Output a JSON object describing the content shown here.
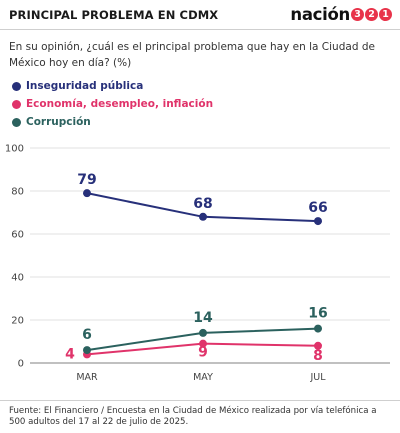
{
  "header": {
    "title": "PRINCIPAL PROBLEMA EN CDMX",
    "logo_word": "nación",
    "logo_digits": [
      "3",
      "2",
      "1"
    ]
  },
  "question": "En su opinión, ¿cuál es el principal problema que hay en la Ciudad de México hoy en día? (%)",
  "legend": [
    {
      "label": "Inseguridad pública",
      "color": "#27307a"
    },
    {
      "label": "Economía, desempleo, inflación",
      "color": "#e0336a"
    },
    {
      "label": "Corrupción",
      "color": "#2b615e"
    }
  ],
  "chart_data": {
    "type": "line",
    "categories": [
      "MAR",
      "MAY",
      "JUL"
    ],
    "ylim": [
      0,
      100
    ],
    "yticks": [
      0,
      20,
      40,
      60,
      80,
      100
    ],
    "grid": true,
    "series": [
      {
        "name": "Inseguridad pública",
        "values": [
          79,
          68,
          66
        ],
        "color": "#27307a"
      },
      {
        "name": "Economía, desempleo, inflación",
        "values": [
          4,
          9,
          8
        ],
        "color": "#e0336a"
      },
      {
        "name": "Corrupción",
        "values": [
          6,
          14,
          16
        ],
        "color": "#2b615e"
      }
    ]
  },
  "source": "Fuente: El Financiero / Encuesta en la Ciudad de México realizada por vía telefónica a 500 adultos del 17 al 22 de julio de 2025."
}
